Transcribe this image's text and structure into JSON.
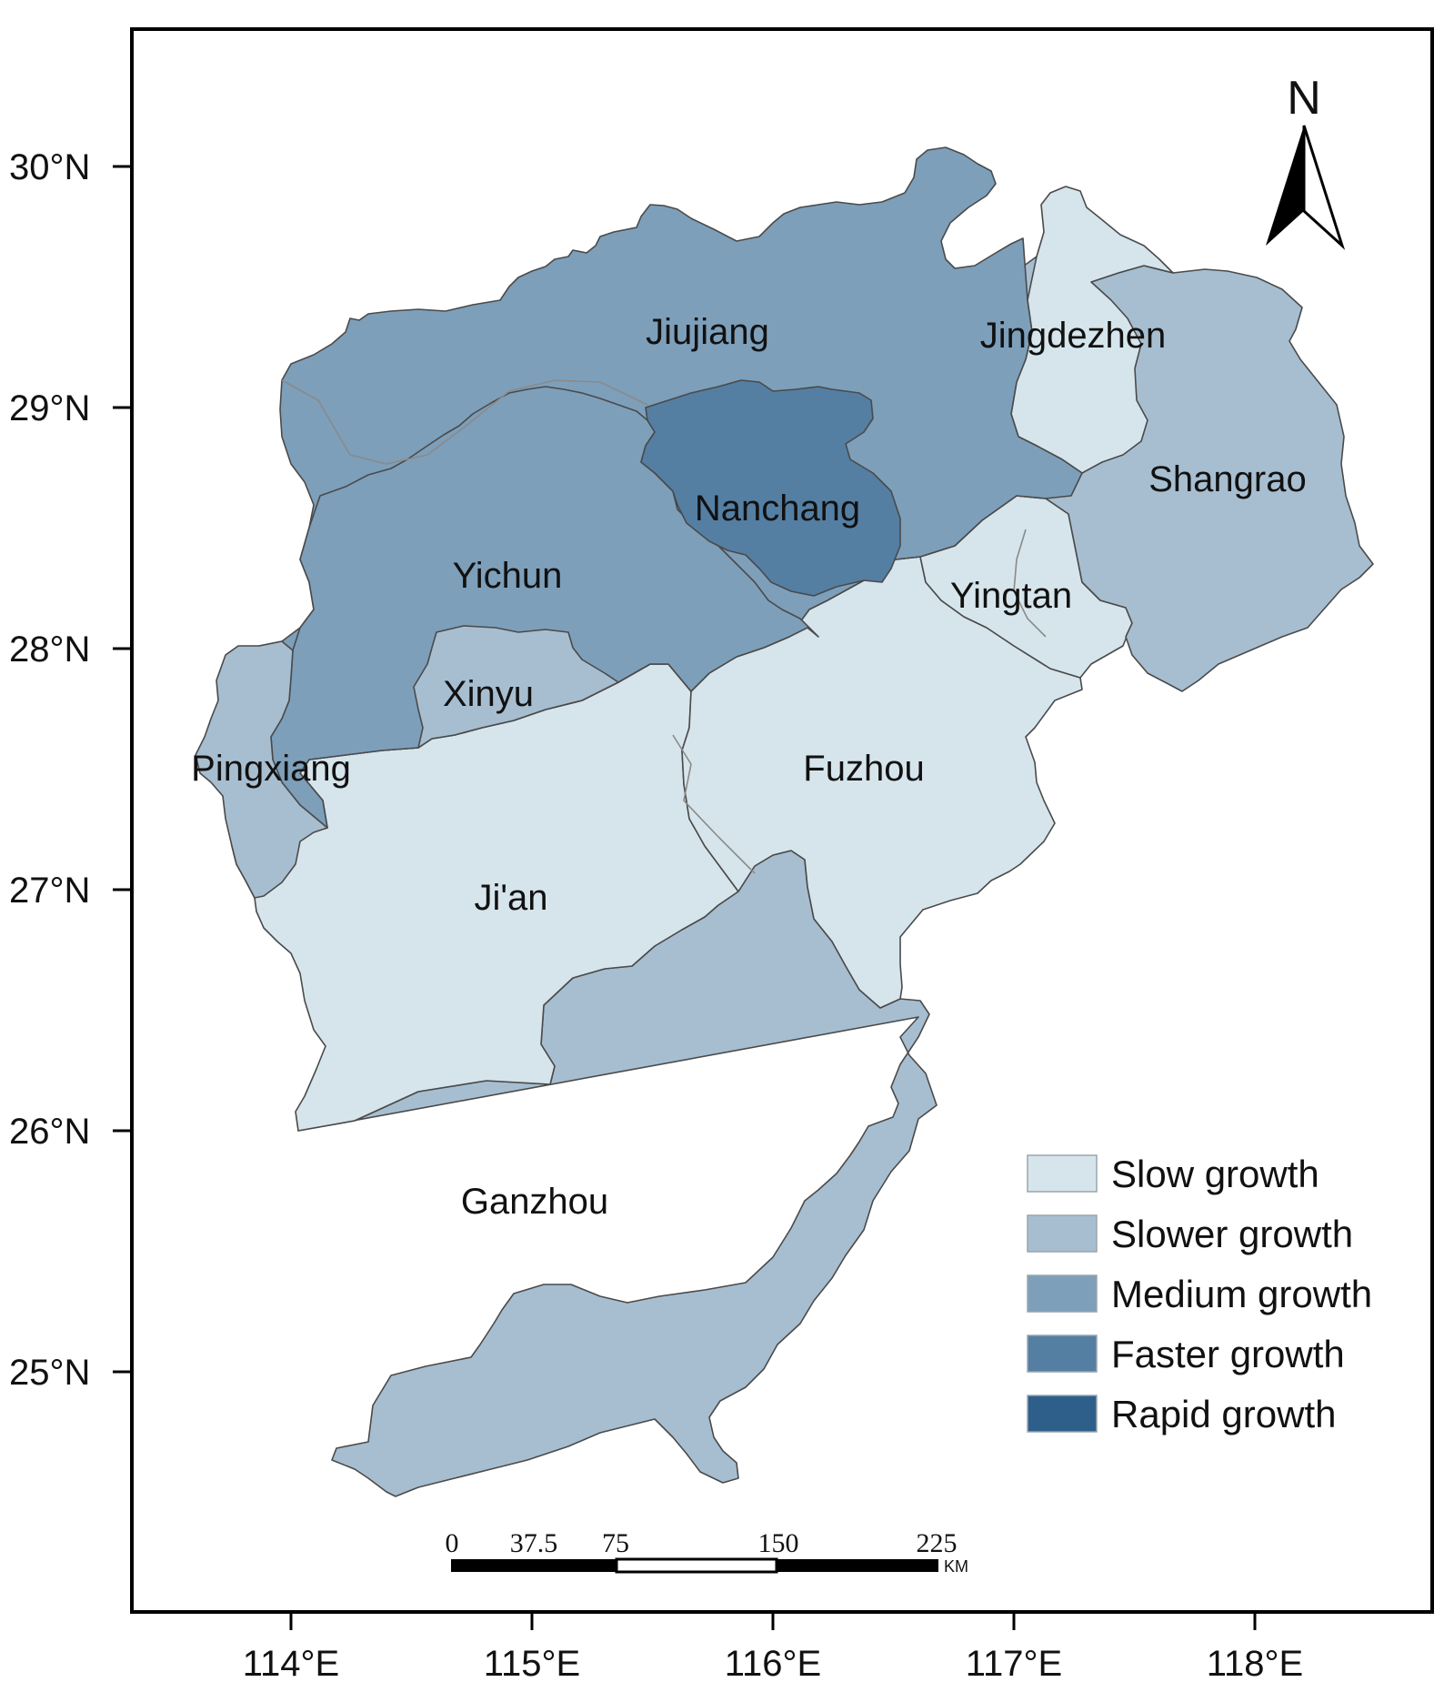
{
  "map": {
    "lat_ticks": [
      "30°N",
      "29°N",
      "28°N",
      "27°N",
      "26°N",
      "25°N"
    ],
    "lon_ticks": [
      "114°E",
      "115°E",
      "116°E",
      "117°E",
      "118°E"
    ],
    "north_arrow": {
      "label": "N"
    },
    "scale_bar": {
      "ticks": [
        "0",
        "37.5",
        "75",
        "150",
        "225"
      ],
      "unit": "KM"
    },
    "legend": [
      {
        "label": "Slow growth",
        "color": "#d6e5ec"
      },
      {
        "label": "Slower growth",
        "color": "#a7bed0"
      },
      {
        "label": "Medium growth",
        "color": "#7d9fba"
      },
      {
        "label": "Faster growth",
        "color": "#547fa3"
      },
      {
        "label": "Rapid growth",
        "color": "#2e5f8a"
      }
    ],
    "regions": [
      {
        "name": "Jiujiang",
        "class": "Medium growth",
        "color": "#7d9fba"
      },
      {
        "name": "Jingdezhen",
        "class": "Slow growth",
        "color": "#d6e5ec"
      },
      {
        "name": "Shangrao",
        "class": "Slower growth",
        "color": "#a7bed0"
      },
      {
        "name": "Nanchang",
        "class": "Faster growth",
        "color": "#547fa3"
      },
      {
        "name": "Yichun",
        "class": "Medium growth",
        "color": "#7d9fba"
      },
      {
        "name": "Yingtan",
        "class": "Slow growth",
        "color": "#d6e5ec"
      },
      {
        "name": "Xinyu",
        "class": "Slower growth",
        "color": "#a7bed0"
      },
      {
        "name": "Pingxiang",
        "class": "Slower growth",
        "color": "#a7bed0"
      },
      {
        "name": "Fuzhou",
        "class": "Slow growth",
        "color": "#d6e5ec"
      },
      {
        "name": "Ji'an",
        "class": "Slow growth",
        "color": "#d6e5ec"
      },
      {
        "name": "Ganzhou",
        "class": "Slower growth",
        "color": "#a7bed0"
      }
    ]
  }
}
